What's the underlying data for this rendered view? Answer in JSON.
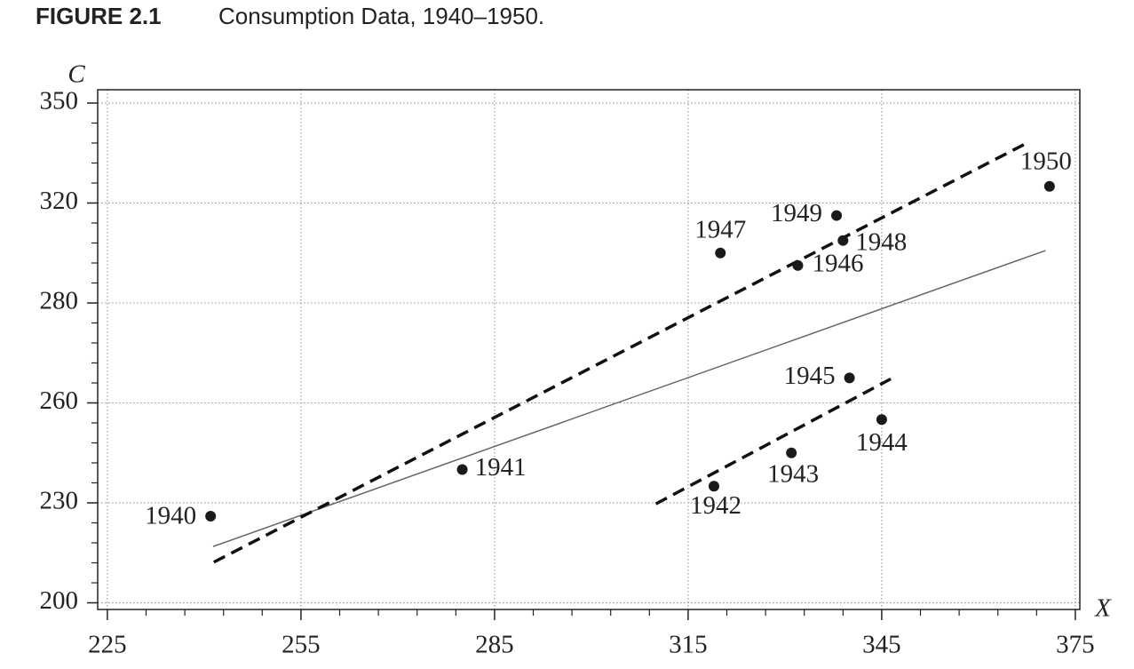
{
  "chart_data": {
    "type": "scatter",
    "title": "FIGURE 2.1",
    "subtitle": "Consumption Data, 1940–1950.",
    "xlabel": "X",
    "ylabel": "C",
    "x": [
      241,
      280,
      319,
      331,
      345,
      340,
      332,
      320,
      339,
      338,
      371
    ],
    "y": [
      226,
      240,
      235,
      245,
      255,
      265,
      295,
      300,
      305,
      315,
      325
    ],
    "point_labels": [
      "1940",
      "1941",
      "1942",
      "1943",
      "1944",
      "1945",
      "1946",
      "1947",
      "1948",
      "1949",
      "1950"
    ],
    "color": "#1a1a1a",
    "lines": [
      {
        "style": "solid",
        "color": "#666666",
        "x": [
          241.4,
          370.4
        ],
        "y": [
          216.9,
          301
        ]
      },
      {
        "style": "dashed",
        "color": "#111111",
        "x": [
          241.5,
          367.6
        ],
        "y": [
          212.2,
          338.1
        ]
      },
      {
        "style": "dashed",
        "color": "#111111",
        "x": [
          310,
          346.4
        ],
        "y": [
          229.7,
          264.8
        ]
      }
    ],
    "xlim": [
      223.5,
      375.7
    ],
    "ylim": [
      198,
      354
    ],
    "xticks": [
      225,
      255,
      285,
      315,
      345,
      375
    ],
    "yticks": [
      200,
      230,
      260,
      280,
      320,
      350
    ],
    "grid": true
  }
}
